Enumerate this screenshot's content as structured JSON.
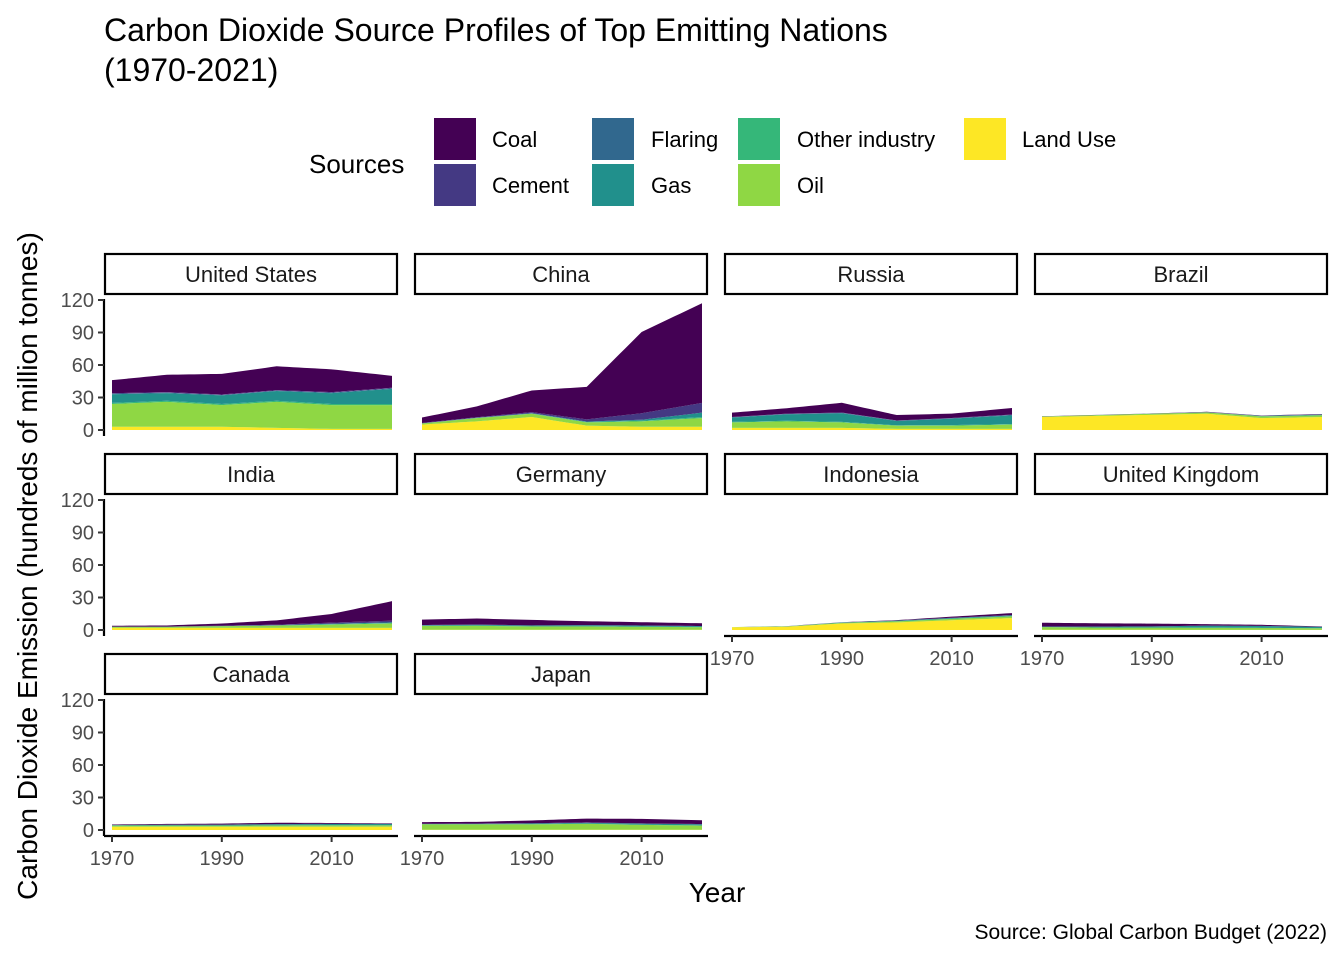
{
  "chart_data": {
    "type": "area",
    "stacked": true,
    "faceted": true,
    "title": "Carbon Dioxide Source Profiles of Top Emitting Nations\n(1970-2021)",
    "title_lines": [
      "Carbon Dioxide Source Profiles of Top Emitting Nations",
      "(1970-2021)"
    ],
    "xlabel": "Year",
    "ylabel": "Carbon Dioxide Emission (hundreds of  million tonnes)",
    "caption": "Source: Global Carbon Budget (2022)",
    "legend": {
      "title": "Sources",
      "position": "top",
      "entries": [
        {
          "name": "Coal",
          "color": "#440154"
        },
        {
          "name": "Cement",
          "color": "#443983"
        },
        {
          "name": "Flaring",
          "color": "#31688E"
        },
        {
          "name": "Gas",
          "color": "#21908C"
        },
        {
          "name": "Other industry",
          "color": "#35B779"
        },
        {
          "name": "Oil",
          "color": "#8FD744"
        },
        {
          "name": "Land Use",
          "color": "#FDE725"
        }
      ]
    },
    "stack_order_bottom_to_top": [
      "Land Use",
      "Oil",
      "Other industry",
      "Gas",
      "Flaring",
      "Cement",
      "Coal"
    ],
    "x_ticks": [
      1970,
      1990,
      2010
    ],
    "xlim": [
      1970,
      2021
    ],
    "y_ticks": [
      0,
      30,
      60,
      90,
      120
    ],
    "ylim": [
      0,
      120
    ],
    "grid": false,
    "keyframe_years": [
      1970,
      1980,
      1990,
      2000,
      2010,
      2021
    ],
    "facets": [
      {
        "name": "United States",
        "series": {
          "Land Use": [
            3,
            3,
            3,
            2,
            1,
            1
          ],
          "Oil": [
            21,
            23,
            20,
            24,
            22,
            22
          ],
          "Other industry": [
            1,
            1,
            1,
            1,
            1,
            1
          ],
          "Gas": [
            8,
            7,
            8,
            9,
            10,
            14
          ],
          "Flaring": [
            0.5,
            0.5,
            0.3,
            0.3,
            0.5,
            0.5
          ],
          "Cement": [
            0.5,
            0.5,
            0.5,
            0.5,
            0.5,
            0.5
          ],
          "Coal": [
            12,
            16,
            19,
            22,
            21,
            11
          ]
        }
      },
      {
        "name": "China",
        "series": {
          "Land Use": [
            5,
            8,
            12,
            4,
            3,
            3
          ],
          "Oil": [
            1,
            3,
            3,
            3,
            5,
            8
          ],
          "Other industry": [
            0.1,
            0.1,
            0.2,
            0.3,
            0.5,
            1
          ],
          "Gas": [
            0.1,
            0.2,
            0.3,
            0.5,
            1,
            4
          ],
          "Flaring": [
            0,
            0,
            0,
            0,
            0,
            0
          ],
          "Cement": [
            0.3,
            0.5,
            1,
            2,
            6,
            9
          ],
          "Coal": [
            5,
            10,
            20,
            30,
            75,
            92
          ]
        }
      },
      {
        "name": "Russia",
        "series": {
          "Land Use": [
            2,
            2,
            2,
            1,
            1,
            1
          ],
          "Oil": [
            5,
            6,
            5,
            3,
            3,
            4
          ],
          "Other industry": [
            0.5,
            0.5,
            0.5,
            0.3,
            0.5,
            0.5
          ],
          "Gas": [
            4,
            6,
            8,
            4,
            6,
            8
          ],
          "Flaring": [
            0.3,
            0.3,
            0.3,
            0.3,
            0.3,
            0.5
          ],
          "Cement": [
            0.2,
            0.3,
            0.3,
            0.2,
            0.3,
            0.3
          ],
          "Coal": [
            4,
            5,
            9,
            5,
            4,
            6
          ]
        }
      },
      {
        "name": "Brazil",
        "series": {
          "Land Use": [
            12,
            13,
            14,
            15,
            11,
            12
          ],
          "Oil": [
            0.5,
            0.7,
            1,
            1.2,
            1.5,
            1.5
          ],
          "Other industry": [
            0,
            0.1,
            0.1,
            0.1,
            0.2,
            0.2
          ],
          "Gas": [
            0,
            0,
            0,
            0.1,
            0.3,
            0.5
          ],
          "Flaring": [
            0,
            0,
            0,
            0,
            0,
            0
          ],
          "Cement": [
            0.1,
            0.1,
            0.1,
            0.2,
            0.2,
            0.3
          ],
          "Coal": [
            0.1,
            0.1,
            0.1,
            0.2,
            0.2,
            0.3
          ]
        }
      },
      {
        "name": "India",
        "series": {
          "Land Use": [
            2,
            2,
            2,
            2,
            2,
            2
          ],
          "Oil": [
            1,
            1,
            1.5,
            2,
            3,
            4
          ],
          "Other industry": [
            0,
            0,
            0.1,
            0.2,
            0.3,
            0.5
          ],
          "Gas": [
            0,
            0,
            0.1,
            0.2,
            0.5,
            0.6
          ],
          "Flaring": [
            0,
            0,
            0,
            0,
            0,
            0
          ],
          "Cement": [
            0.1,
            0.2,
            0.3,
            0.5,
            1,
            1.5
          ],
          "Coal": [
            0.8,
            1,
            2,
            4,
            8,
            18
          ]
        }
      },
      {
        "name": "Germany",
        "series": {
          "Land Use": [
            0.2,
            0.2,
            0.2,
            0.2,
            0.2,
            0.2
          ],
          "Oil": [
            3.5,
            3.7,
            3,
            3,
            2.8,
            2.4
          ],
          "Other industry": [
            0.2,
            0.2,
            0.2,
            0.2,
            0.2,
            0.2
          ],
          "Gas": [
            0.5,
            0.8,
            0.7,
            1,
            0.9,
            0.8
          ],
          "Flaring": [
            0,
            0,
            0,
            0,
            0,
            0
          ],
          "Cement": [
            0.2,
            0.2,
            0.2,
            0.2,
            0.1,
            0.1
          ],
          "Coal": [
            5,
            5.5,
            5,
            3.5,
            3,
            2.5
          ]
        }
      },
      {
        "name": "Indonesia",
        "series": {
          "Land Use": [
            2.5,
            3,
            6,
            7,
            9,
            11
          ],
          "Oil": [
            0.2,
            0.4,
            0.6,
            1,
            1.3,
            1.6
          ],
          "Other industry": [
            0,
            0,
            0.1,
            0.1,
            0.1,
            0.2
          ],
          "Gas": [
            0,
            0.1,
            0.3,
            0.5,
            0.7,
            0.7
          ],
          "Flaring": [
            0,
            0,
            0,
            0,
            0,
            0
          ],
          "Cement": [
            0,
            0.1,
            0.1,
            0.2,
            0.2,
            0.3
          ],
          "Coal": [
            0,
            0,
            0.1,
            0.3,
            1,
            1.8
          ]
        }
      },
      {
        "name": "United Kingdom",
        "series": {
          "Land Use": [
            0.2,
            0.2,
            0.2,
            0.1,
            0.1,
            0.1
          ],
          "Oil": [
            2.5,
            2,
            2,
            2,
            1.8,
            1.5
          ],
          "Other industry": [
            0.1,
            0.1,
            0.1,
            0.1,
            0.1,
            0.1
          ],
          "Gas": [
            0.3,
            0.8,
            1,
            1.8,
            1.7,
            1.2
          ],
          "Flaring": [
            0,
            0,
            0,
            0,
            0,
            0
          ],
          "Cement": [
            0.1,
            0.1,
            0.1,
            0.1,
            0.1,
            0.1
          ],
          "Coal": [
            3.5,
            3,
            2.5,
            1.3,
            1,
            0.3
          ]
        }
      },
      {
        "name": "Canada",
        "series": {
          "Land Use": [
            3,
            3,
            3,
            3,
            3,
            3
          ],
          "Oil": [
            1,
            1,
            1,
            1.2,
            1.3,
            1.3
          ],
          "Other industry": [
            0.1,
            0.1,
            0.1,
            0.1,
            0.1,
            0.1
          ],
          "Gas": [
            0.4,
            0.6,
            0.7,
            1,
            1.1,
            1.2
          ],
          "Flaring": [
            0.1,
            0.1,
            0.1,
            0.1,
            0.1,
            0.1
          ],
          "Cement": [
            0.1,
            0.1,
            0.1,
            0.1,
            0.1,
            0.1
          ],
          "Coal": [
            0.5,
            0.7,
            0.9,
            1.2,
            0.8,
            0.4
          ]
        }
      },
      {
        "name": "Japan",
        "series": {
          "Land Use": [
            0.2,
            0.2,
            0.2,
            0.2,
            0.2,
            0.2
          ],
          "Oil": [
            5,
            5,
            5,
            5.5,
            4.5,
            3.8
          ],
          "Other industry": [
            0.2,
            0.2,
            0.2,
            0.2,
            0.2,
            0.2
          ],
          "Gas": [
            0.1,
            0.3,
            0.6,
            0.8,
            1,
            1.1
          ],
          "Flaring": [
            0,
            0,
            0,
            0,
            0,
            0
          ],
          "Cement": [
            0.3,
            0.3,
            0.3,
            0.3,
            0.2,
            0.2
          ],
          "Coal": [
            1.5,
            1.5,
            2.5,
            3.5,
            4.2,
            3.5
          ]
        }
      }
    ]
  }
}
